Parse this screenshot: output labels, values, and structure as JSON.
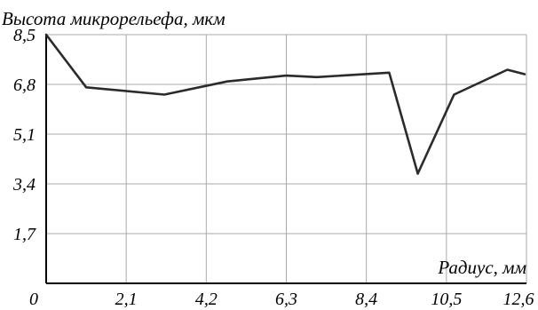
{
  "chart_data": {
    "type": "line",
    "ylabel": "Высота микрорельефа, мкм",
    "xlabel": "Радиус, мм",
    "xlim": [
      0,
      12.6
    ],
    "ylim": [
      0,
      8.5
    ],
    "x_ticks": [
      0,
      2.1,
      4.2,
      6.3,
      8.4,
      10.5,
      12.6
    ],
    "x_tick_labels": [
      "0",
      "2,1",
      "4,2",
      "6,3",
      "8,4",
      "10,5",
      "12,6"
    ],
    "y_ticks": [
      1.7,
      3.4,
      5.1,
      6.8,
      8.5
    ],
    "y_tick_labels": [
      "1,7",
      "3,4",
      "5,1",
      "6,8",
      "8,5"
    ],
    "grid": true,
    "series": [
      {
        "x": [
          0,
          1.05,
          3.1,
          4.75,
          6.3,
          7.1,
          9.0,
          9.75,
          10.7,
          12.1,
          12.55
        ],
        "y": [
          8.5,
          6.7,
          6.45,
          6.9,
          7.1,
          7.05,
          7.2,
          3.75,
          6.45,
          7.3,
          7.15
        ]
      }
    ]
  }
}
